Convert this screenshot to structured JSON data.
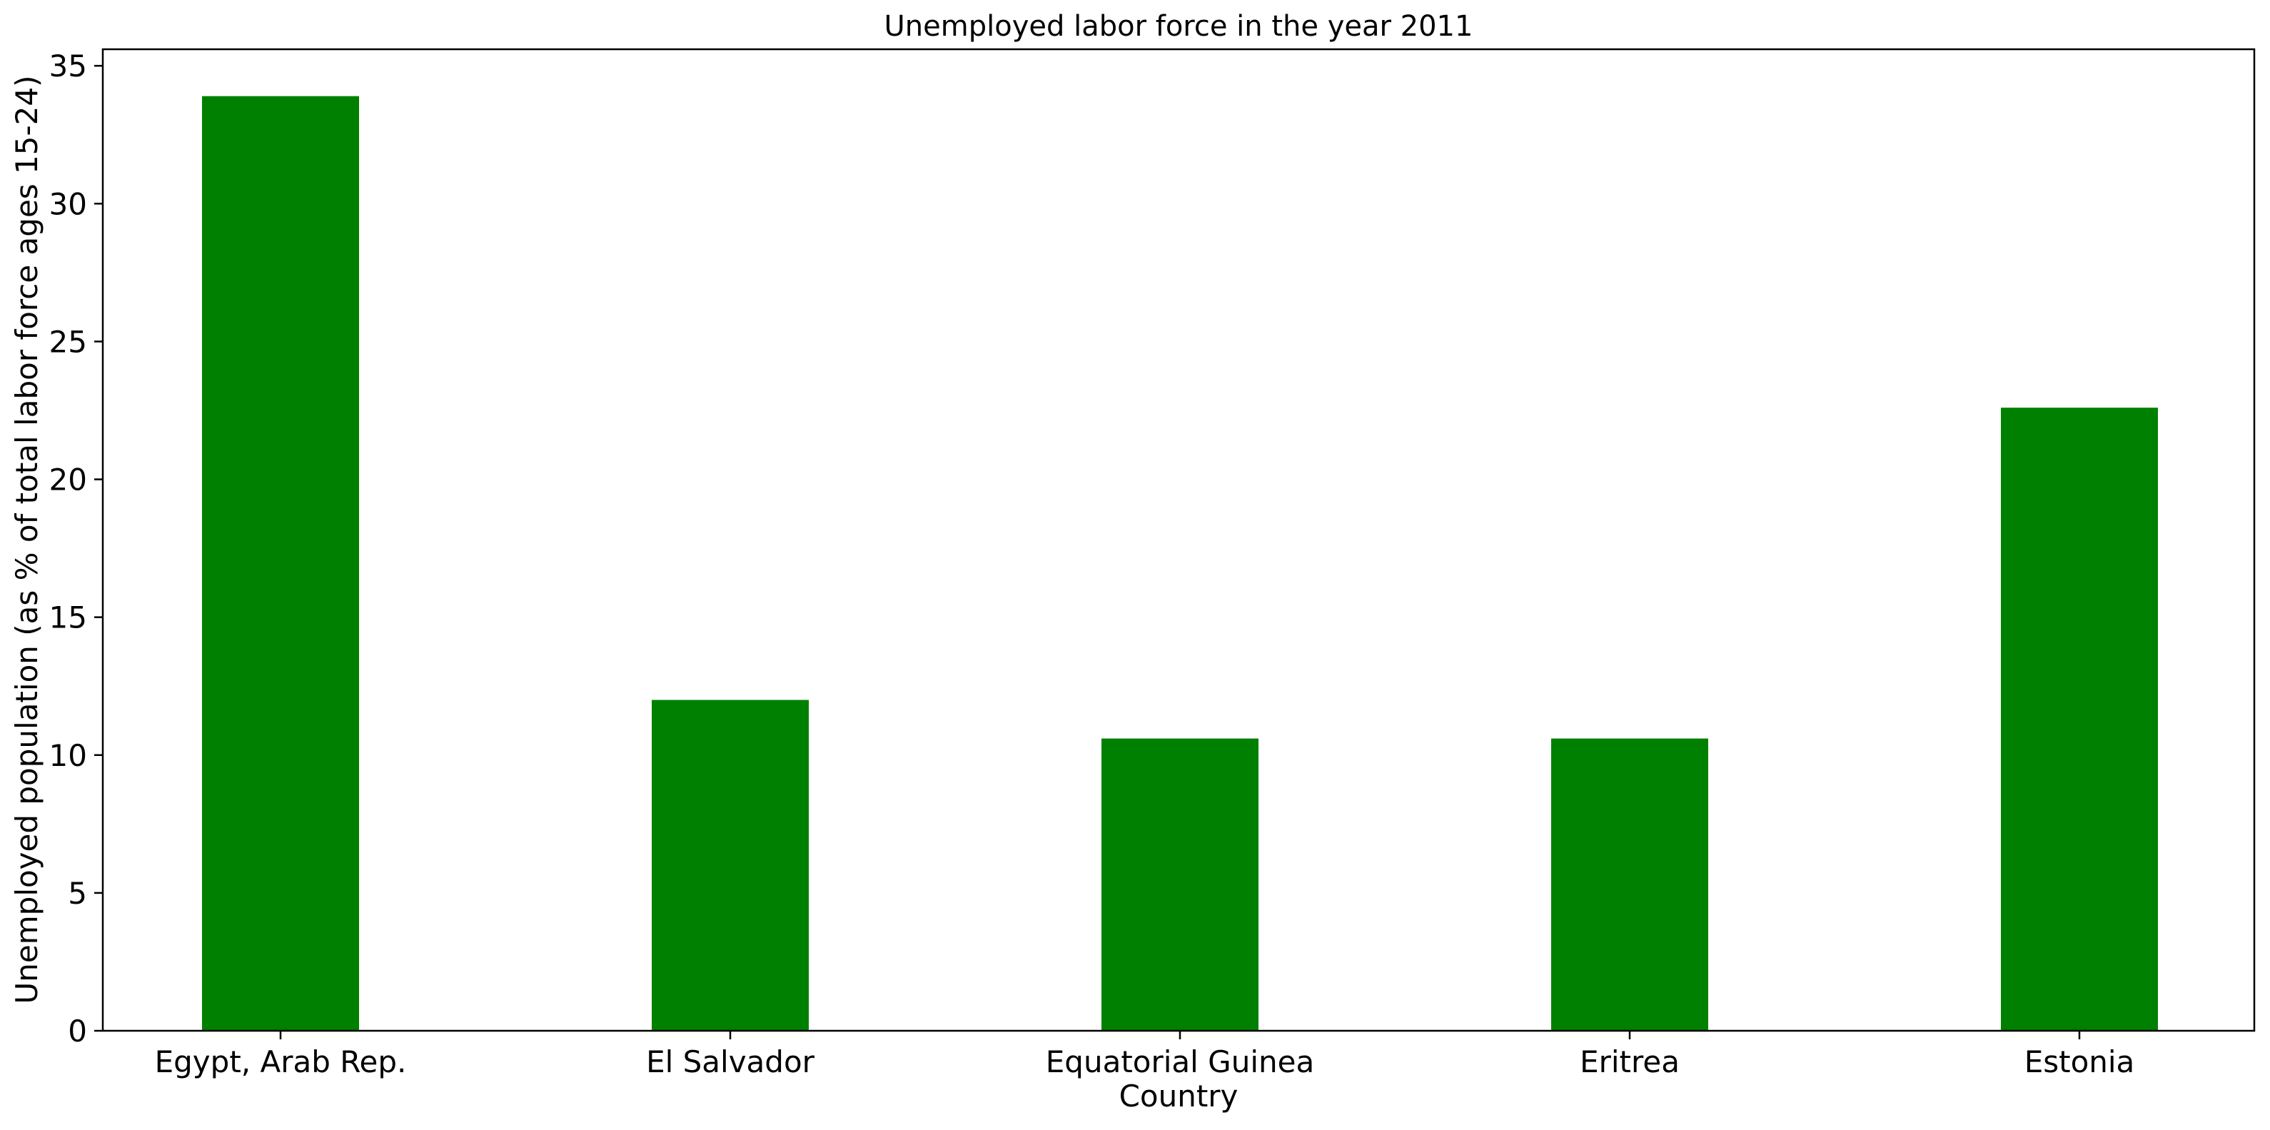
{
  "chart_data": {
    "type": "bar",
    "title": "Unemployed labor force in the year 2011",
    "xlabel": "Country",
    "ylabel": "Unemployed population (as % of total labor force ages 15-24)",
    "categories": [
      "Egypt, Arab Rep.",
      "El Salvador",
      "Equatorial Guinea",
      "Eritrea",
      "Estonia"
    ],
    "series": [
      {
        "values": [
          33.9,
          12.0,
          10.6,
          10.6,
          22.6
        ],
        "color": "#008000"
      }
    ],
    "ylim": [
      0,
      35.6
    ],
    "yticks": [
      0,
      5,
      10,
      15,
      20,
      25,
      30,
      35
    ],
    "grid": false,
    "legend": "none"
  }
}
